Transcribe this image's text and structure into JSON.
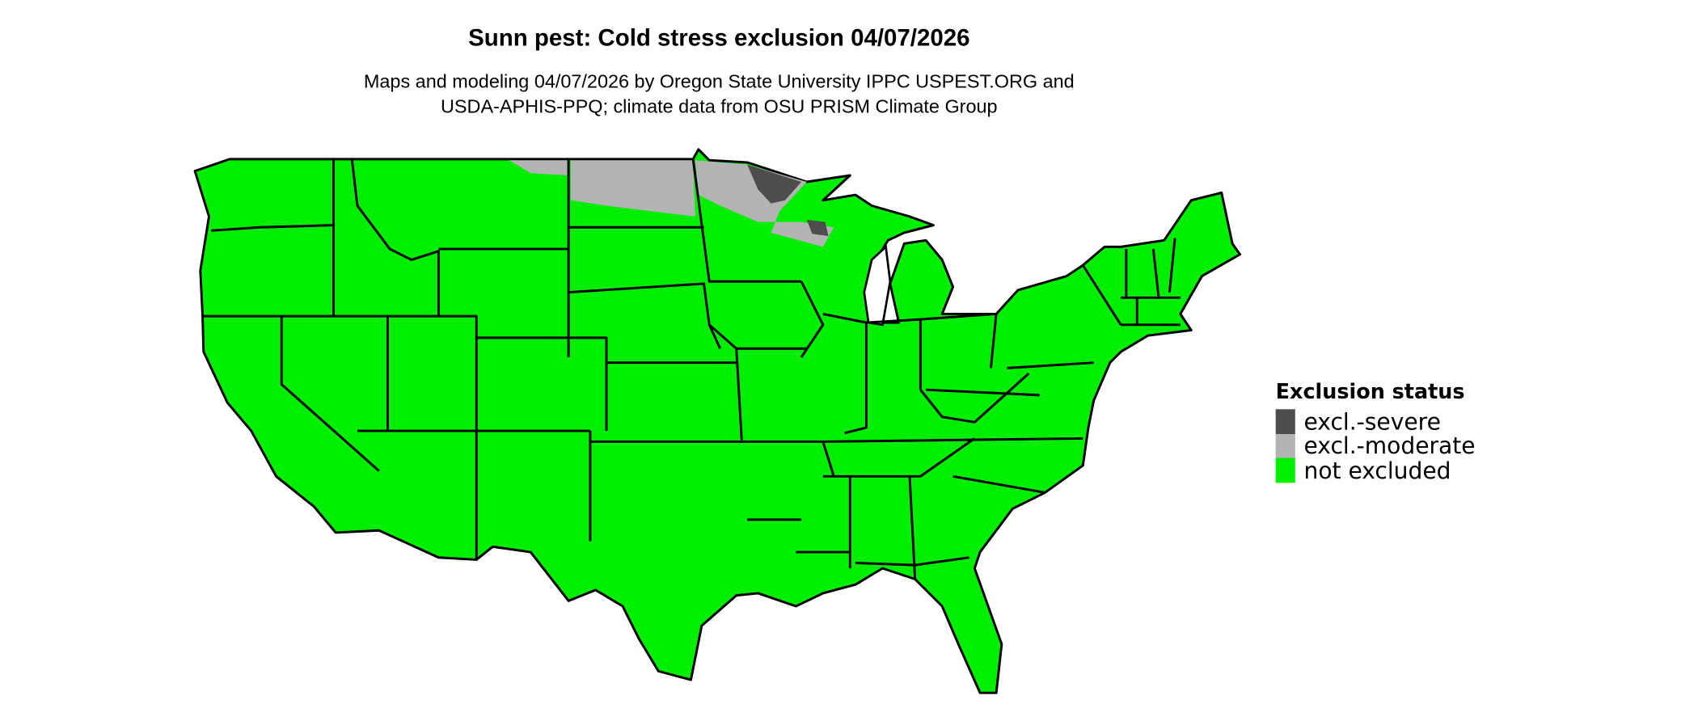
{
  "title": "Sunn pest: Cold stress exclusion 04/07/2026",
  "subtitle_lines": [
    "Maps and modeling 04/07/2026 by Oregon State University IPPC USPEST.ORG and",
    "USDA-APHIS-PPQ; climate data from OSU PRISM Climate Group"
  ],
  "legend": {
    "title": "Exclusion status",
    "placement": "right",
    "items": [
      {
        "label": "excl.-severe",
        "color": "#4d4d4d"
      },
      {
        "label": "excl.-moderate",
        "color": "#b3b3b3"
      },
      {
        "label": "not excluded",
        "color": "#00ee00"
      }
    ]
  },
  "map": {
    "region": "contiguous United States, state boundaries",
    "excluded_areas": {
      "severe": "northeastern Minnesota, northern Wisconsin",
      "moderate": "northern North Dakota, northern Minnesota, northern Montana border, northern Wisconsin"
    }
  }
}
